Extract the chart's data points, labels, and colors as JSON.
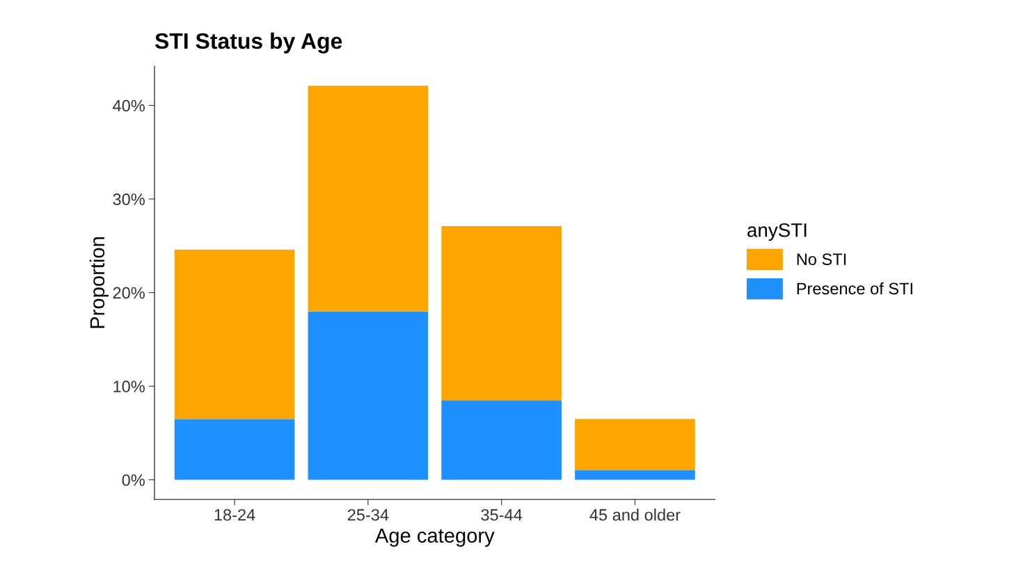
{
  "chart_data": {
    "type": "bar",
    "title": "STI Status by Age",
    "xlabel": "Age category",
    "ylabel": "Proportion",
    "legend_title": "anySTI",
    "categories": [
      "18-24",
      "25-34",
      "35-44",
      "45 and older"
    ],
    "stacked": true,
    "series": [
      {
        "name": "Presence of STI",
        "color": "#1e90ff",
        "values": [
          6.5,
          18.0,
          8.5,
          1.0
        ]
      },
      {
        "name": "No STI",
        "color": "#ffa500",
        "values": [
          18.1,
          24.1,
          18.6,
          5.5
        ]
      }
    ],
    "ylim": [
      -2.1,
      44.2
    ],
    "yticks": [
      {
        "value": 0,
        "label": "0%"
      },
      {
        "value": 10,
        "label": "10%"
      },
      {
        "value": 20,
        "label": "20%"
      },
      {
        "value": 30,
        "label": "30%"
      },
      {
        "value": 40,
        "label": "40%"
      }
    ],
    "grid": false,
    "legend": "right"
  }
}
